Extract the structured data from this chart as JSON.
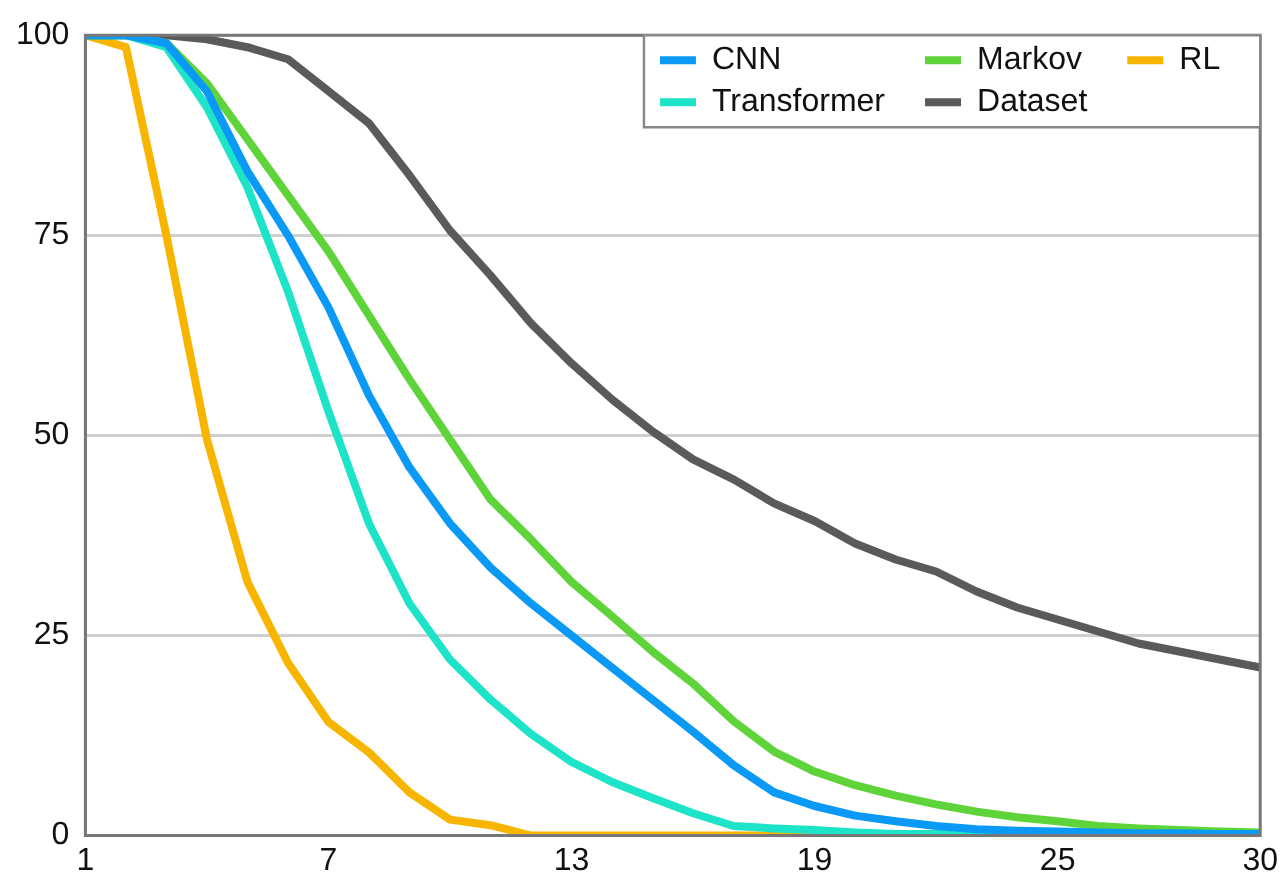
{
  "chart_data": {
    "type": "line",
    "x": [
      1,
      2,
      3,
      4,
      5,
      6,
      7,
      8,
      9,
      10,
      11,
      12,
      13,
      14,
      15,
      16,
      17,
      18,
      19,
      20,
      21,
      22,
      23,
      24,
      25,
      26,
      27,
      28,
      29,
      30
    ],
    "series": [
      {
        "name": "CNN",
        "color": "#0a9af5",
        "values": [
          100,
          100,
          99,
          93,
          83,
          75,
          66,
          55,
          46,
          39,
          33.5,
          29,
          25,
          21,
          17,
          13,
          8.8,
          5.4,
          3.7,
          2.5,
          1.8,
          1.2,
          0.8,
          0.6,
          0.5,
          0.4,
          0.3,
          0.3,
          0.2,
          0.2
        ]
      },
      {
        "name": "Transformer",
        "color": "#1de3c8",
        "values": [
          100,
          100,
          98.5,
          91,
          81,
          68,
          53,
          39,
          29,
          22,
          17,
          12.7,
          9.2,
          6.7,
          4.7,
          2.8,
          1.2,
          0.9,
          0.7,
          0.4,
          0.2,
          0.2,
          0.1,
          0.1,
          null,
          null,
          null,
          null,
          null,
          null
        ]
      },
      {
        "name": "Markov",
        "color": "#5fd43a",
        "values": [
          100,
          100,
          99,
          94,
          87,
          80,
          73,
          65,
          57,
          49.5,
          42,
          37,
          31.7,
          27.4,
          23,
          19,
          14.3,
          10.5,
          8,
          6.3,
          5,
          3.9,
          3,
          2.3,
          1.8,
          1.2,
          0.9,
          0.7,
          0.5,
          0.4
        ]
      },
      {
        "name": "Dataset",
        "color": "#5a5a5a",
        "values": [
          100,
          100,
          100,
          99.5,
          98.5,
          97,
          93,
          89,
          82.5,
          75.6,
          70,
          64,
          59,
          54.5,
          50.5,
          47,
          44.5,
          41.5,
          39.3,
          36.5,
          34.5,
          33,
          30.5,
          28.5,
          27,
          25.5,
          24,
          23,
          22,
          21
        ]
      },
      {
        "name": "RL",
        "color": "#f7b500",
        "values": [
          100,
          98.5,
          75,
          49.5,
          31.7,
          21.6,
          14.2,
          10.4,
          5.4,
          2,
          1.3,
          0,
          0,
          0,
          0,
          0,
          0,
          0,
          0,
          0,
          null,
          null,
          null,
          null,
          null,
          null,
          null,
          null,
          null,
          null
        ]
      }
    ],
    "xlim": [
      1,
      30
    ],
    "xticks": [
      1,
      7,
      13,
      19,
      25,
      30
    ],
    "ylim": [
      0,
      100
    ],
    "yticks": [
      0,
      25,
      50,
      75,
      100
    ],
    "grid": "y",
    "legend": "top right",
    "marker": "none",
    "line_style": "solid"
  }
}
